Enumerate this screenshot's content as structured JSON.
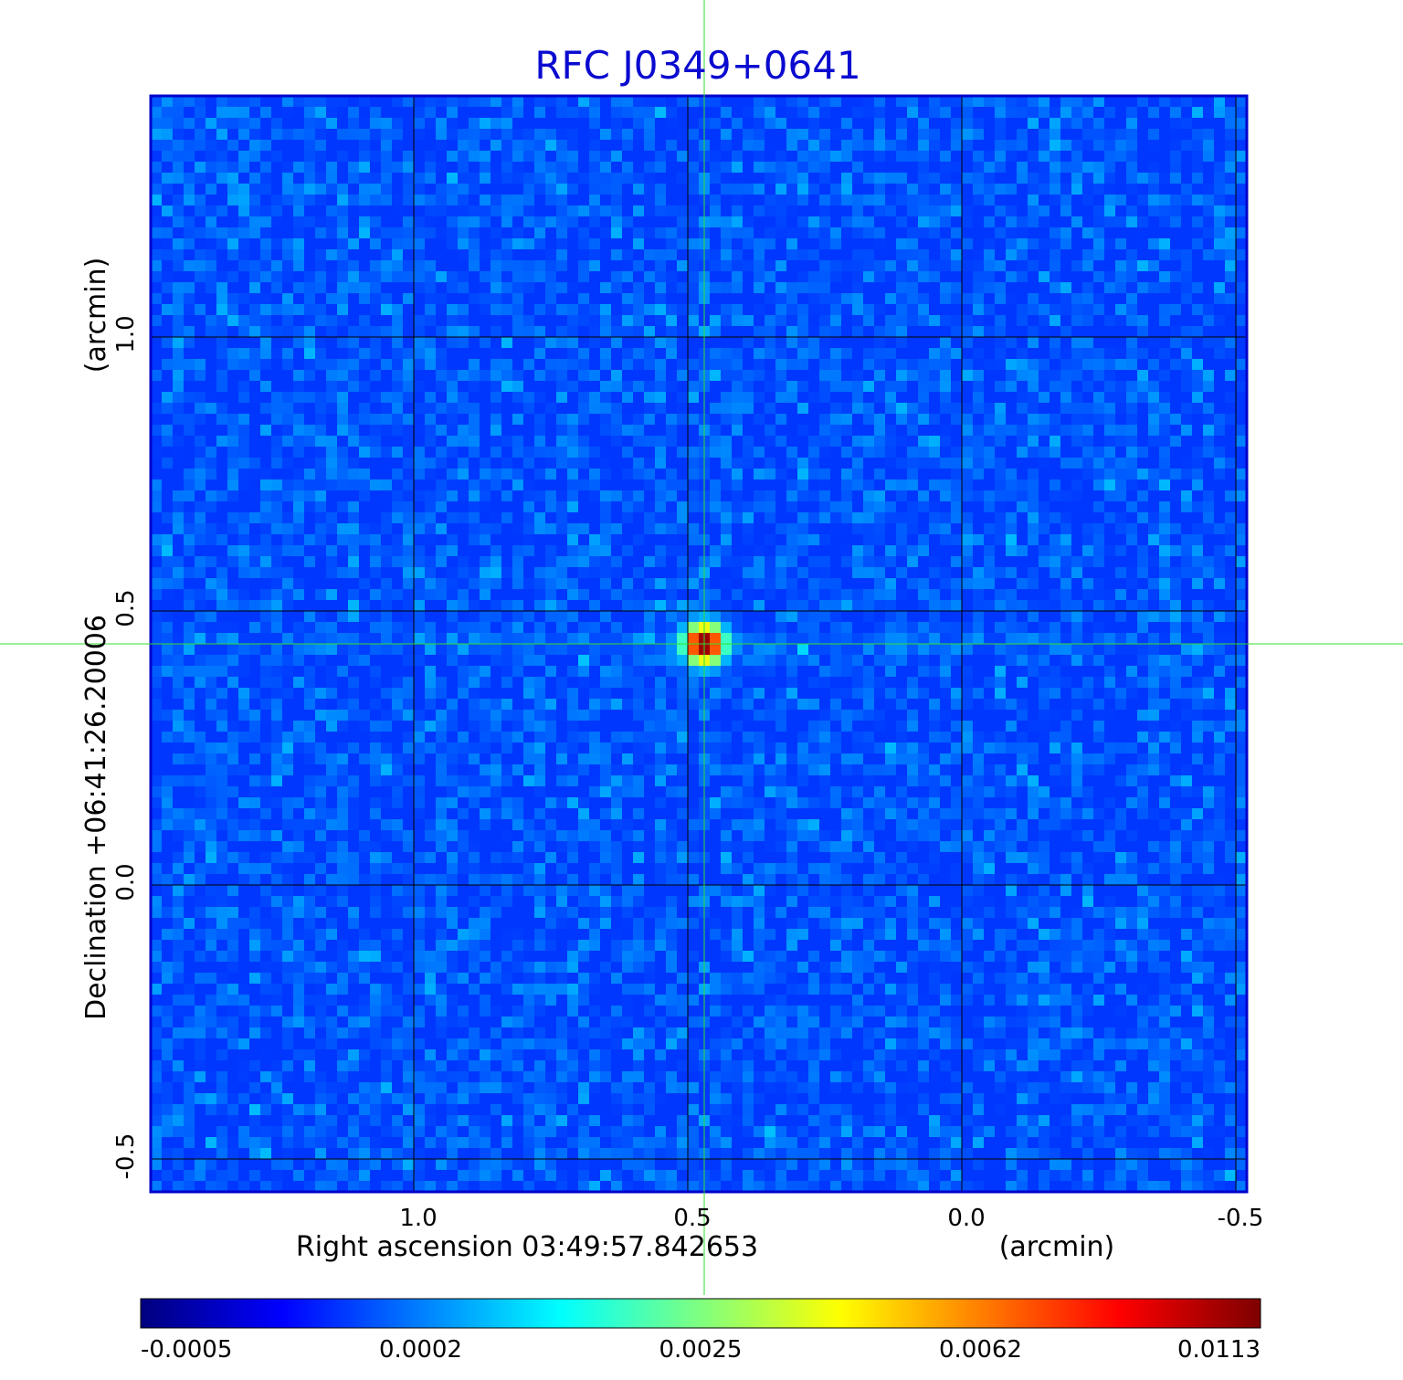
{
  "chart_data": {
    "type": "heatmap",
    "title": "RFC J0349+0641",
    "xlabel": "Right ascension  03:49:57.842653",
    "xunit": "(arcmin)",
    "ylabel": "Declination  +06:41:26.20006",
    "yunit": "(arcmin)",
    "xlim": [
      1.48,
      -0.52
    ],
    "ylim": [
      -0.56,
      1.44
    ],
    "x_ticks": [
      {
        "value": 1.0,
        "label": "1.0"
      },
      {
        "value": 0.5,
        "label": "0.5"
      },
      {
        "value": 0.0,
        "label": "0.0"
      },
      {
        "value": -0.5,
        "label": "-0.5"
      }
    ],
    "y_ticks": [
      {
        "value": 1.0,
        "label": "1.0"
      },
      {
        "value": 0.5,
        "label": "0.5"
      },
      {
        "value": 0.0,
        "label": "0.0"
      },
      {
        "value": -0.5,
        "label": "-0.5"
      }
    ],
    "grid": true,
    "pixels_per_side": 100,
    "source_peak": {
      "x": 0.47,
      "y": 0.44,
      "value": 0.0113
    },
    "crosshair": {
      "x": 0.47,
      "y": 0.44,
      "color": "#33dd33"
    },
    "colorbar": {
      "colormap": "jet",
      "ticks": [
        {
          "value": -0.0005,
          "label": "-0.0005"
        },
        {
          "value": 0.0002,
          "label": "0.0002"
        },
        {
          "value": 0.0025,
          "label": "0.0025"
        },
        {
          "value": 0.0062,
          "label": "0.0062"
        },
        {
          "value": 0.0113,
          "label": "0.0113"
        }
      ]
    }
  }
}
